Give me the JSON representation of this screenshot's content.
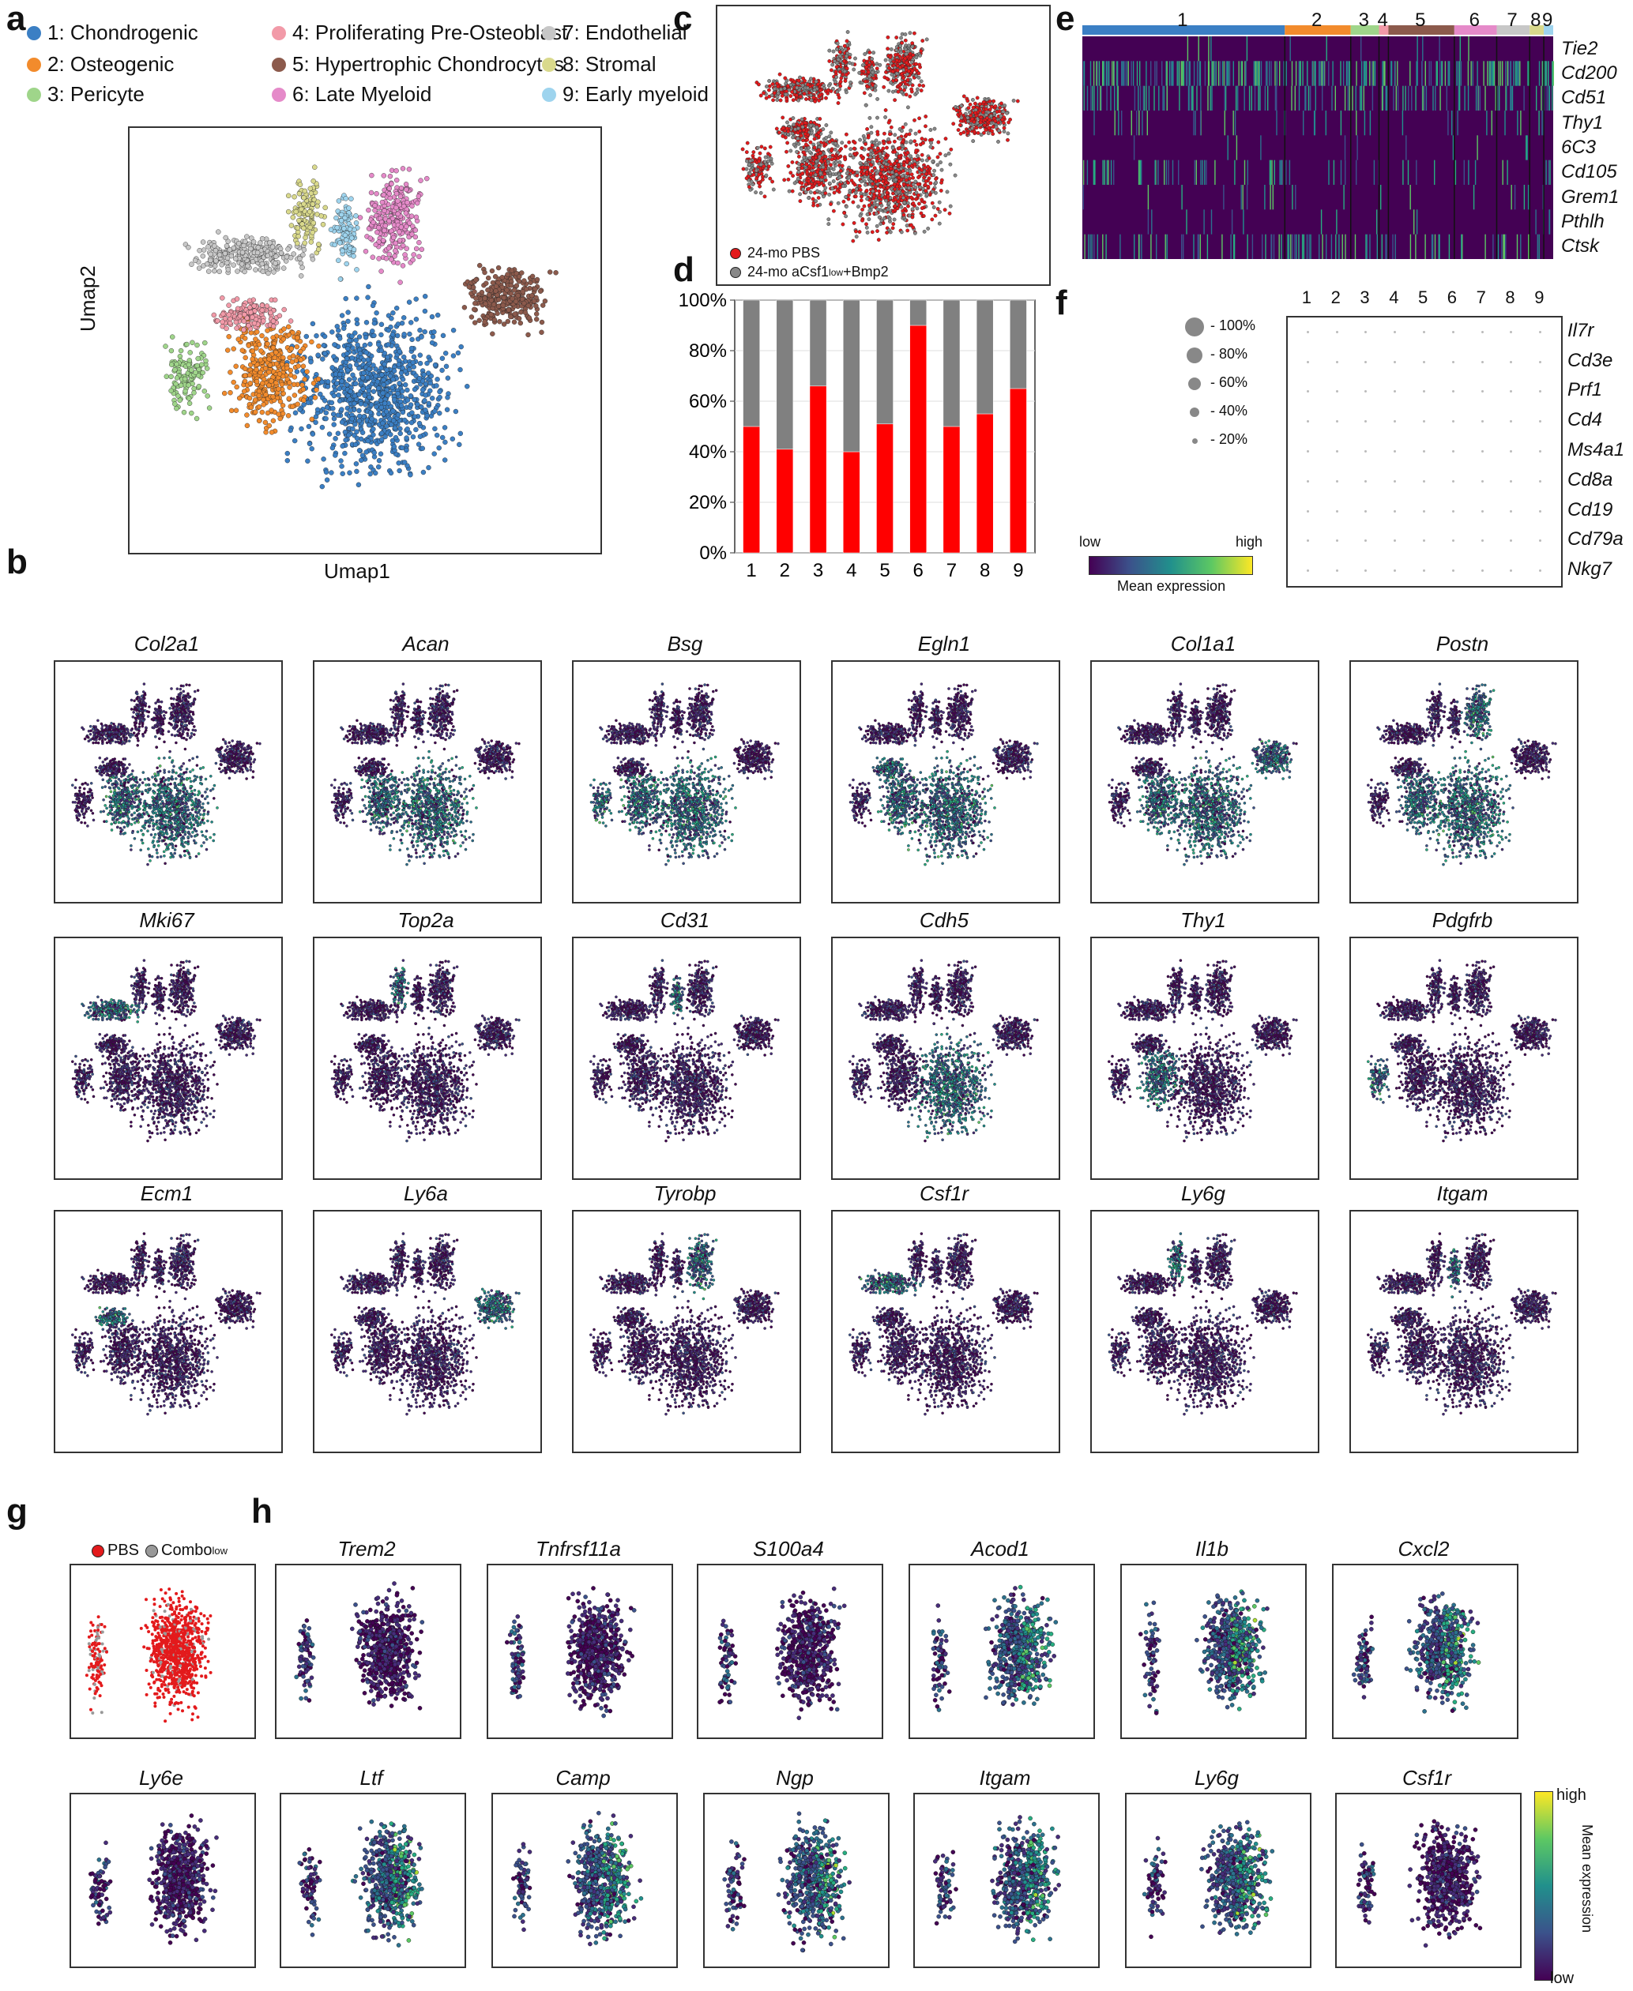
{
  "panels": {
    "a": "a",
    "b": "b",
    "c": "c",
    "d": "d",
    "e": "e",
    "f": "f",
    "g": "g",
    "h": "h"
  },
  "clusters": [
    {
      "label": "1: Chondrogenic",
      "color": "#3b7fc4"
    },
    {
      "label": "2: Osteogenic",
      "color": "#f28b2c"
    },
    {
      "label": "3: Pericyte",
      "color": "#9fd58a"
    },
    {
      "label": "4: Proliferating Pre-Osteoblast",
      "color": "#f29aa8"
    },
    {
      "label": "5: Hypertrophic Chondrocytes",
      "color": "#8c5a4c"
    },
    {
      "label": "6: Late Myeloid",
      "color": "#e58ac9"
    },
    {
      "label": "7: Endothelial",
      "color": "#c7c7c7"
    },
    {
      "label": "8: Stromal",
      "color": "#d9d98c"
    },
    {
      "label": "9: Early myeloid",
      "color": "#9ed4ee"
    }
  ],
  "umap_a": {
    "xlabel": "Umap1",
    "ylabel": "Umap2"
  },
  "panel_c": {
    "legend": [
      {
        "label": "24-mo PBS",
        "color": "#e31a1c"
      },
      {
        "label": "24-mo aCsf1",
        "sup": "low",
        "suffix": "+Bmp2",
        "color": "#888888"
      }
    ]
  },
  "chart_data": [
    {
      "type": "bar",
      "title": "",
      "categories": [
        "1",
        "2",
        "3",
        "4",
        "5",
        "6",
        "7",
        "8",
        "9"
      ],
      "series": [
        {
          "name": "24-mo PBS",
          "color": "#ff0000",
          "values": [
            50,
            41,
            66,
            40,
            51,
            90,
            50,
            55,
            65
          ]
        },
        {
          "name": "24-mo aCsf1low+Bmp2",
          "color": "#808080",
          "values": [
            50,
            59,
            34,
            60,
            49,
            10,
            50,
            45,
            35
          ]
        }
      ],
      "yticks": [
        "0%",
        "20%",
        "40%",
        "60%",
        "80%",
        "100%"
      ],
      "ylim": [
        0,
        100
      ],
      "stacked": true
    },
    {
      "type": "heatmap",
      "clusters": [
        "1",
        "2",
        "3",
        "4",
        "5",
        "6",
        "7",
        "8",
        "9"
      ],
      "genes": [
        "Tie2",
        "Cd200",
        "Cd51",
        "Thy1",
        "6C3",
        "Cd105",
        "Grem1",
        "Pthlh",
        "Ctsk"
      ]
    },
    {
      "type": "scatter",
      "subtype": "dotplot",
      "clusters": [
        "1",
        "2",
        "3",
        "4",
        "5",
        "6",
        "7",
        "8",
        "9"
      ],
      "genes": [
        "Il7r",
        "Cd3e",
        "Prf1",
        "Cd4",
        "Ms4a1",
        "Cd8a",
        "Cd19",
        "Cd79a",
        "Nkg7"
      ],
      "size_legend": [
        "100%",
        "80%",
        "60%",
        "40%",
        "20%"
      ],
      "colorbar": {
        "low": "low",
        "high": "high",
        "label": "Mean expression"
      }
    }
  ],
  "panel_b_genes": [
    "Col2a1",
    "Acan",
    "Bsg",
    "Egln1",
    "Col1a1",
    "Postn",
    "Mki67",
    "Top2a",
    "Cd31",
    "Cdh5",
    "Thy1",
    "Pdgfrb",
    "Ecm1",
    "Ly6a",
    "Tyrobp",
    "Csf1r",
    "Ly6g",
    "Itgam"
  ],
  "panel_g": {
    "legend": [
      {
        "label": "PBS",
        "color": "#e31a1c"
      },
      {
        "label": "Combo",
        "sup": "low",
        "color": "#999999"
      }
    ]
  },
  "panel_h_genes": [
    "Trem2",
    "Tnfrsf11a",
    "S100a4",
    "Acod1",
    "Il1b",
    "Cxcl2",
    "Ly6e",
    "Ltf",
    "Camp",
    "Ngp",
    "Itgam",
    "Ly6g",
    "Csf1r"
  ],
  "panel_h_colorbar": {
    "high": "high",
    "low": "low",
    "label": "Mean expression"
  }
}
